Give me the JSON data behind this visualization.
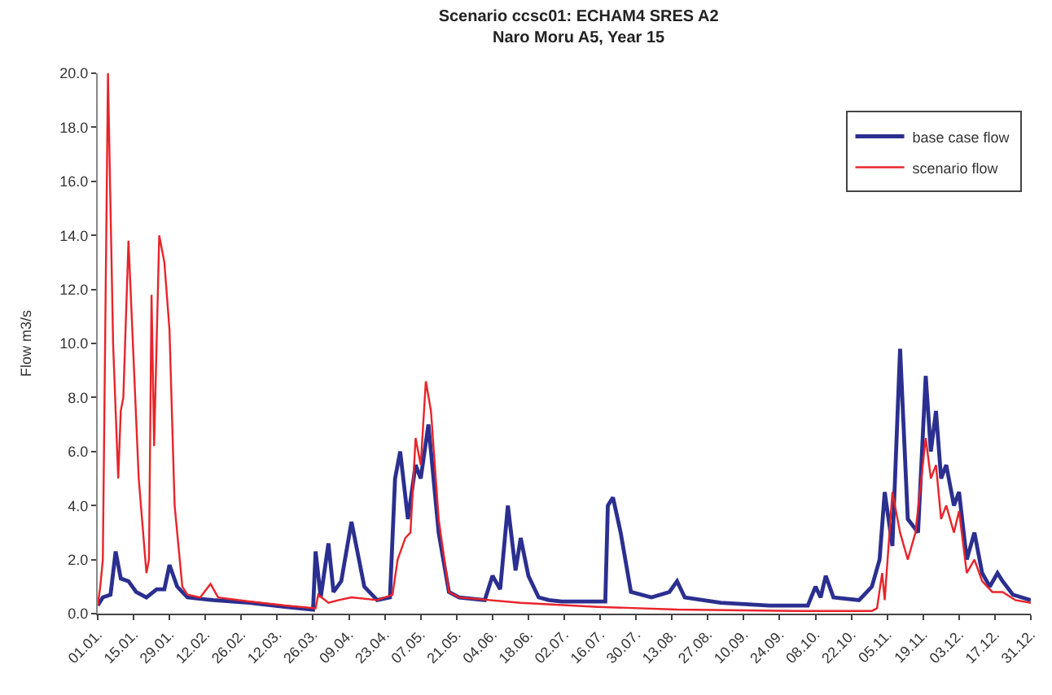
{
  "chart_data": {
    "type": "line",
    "title": "Scenario ccsc01: ECHAM4 SRES A2",
    "subtitle": "Naro Moru A5, Year 15",
    "ylabel": "Flow m3/s",
    "legend": "top right",
    "grid": false,
    "marker": "none",
    "line_style": "solid",
    "ylim": [
      0,
      20
    ],
    "yticks": [
      {
        "value": 0,
        "label": "0.0"
      },
      {
        "value": 2,
        "label": "2.0"
      },
      {
        "value": 4,
        "label": "4.0"
      },
      {
        "value": 6,
        "label": "6.0"
      },
      {
        "value": 8,
        "label": "8.0"
      },
      {
        "value": 10,
        "label": "10.0"
      },
      {
        "value": 12,
        "label": "12.0"
      },
      {
        "value": 14,
        "label": "14.0"
      },
      {
        "value": 16,
        "label": "16.0"
      },
      {
        "value": 18,
        "label": "18.0"
      },
      {
        "value": 20,
        "label": "20.0"
      }
    ],
    "xlim": [
      "--01-01",
      "--12-31"
    ],
    "xticks": [
      {
        "value": "--01-01",
        "label": "01.01."
      },
      {
        "value": "--01-15",
        "label": "15.01."
      },
      {
        "value": "--01-29",
        "label": "29.01."
      },
      {
        "value": "--02-12",
        "label": "12.02."
      },
      {
        "value": "--02-26",
        "label": "26.02."
      },
      {
        "value": "--03-12",
        "label": "12.03."
      },
      {
        "value": "--03-26",
        "label": "26.03."
      },
      {
        "value": "--04-09",
        "label": "09.04."
      },
      {
        "value": "--04-23",
        "label": "23.04."
      },
      {
        "value": "--05-07",
        "label": "07.05."
      },
      {
        "value": "--05-21",
        "label": "21.05."
      },
      {
        "value": "--06-04",
        "label": "04.06."
      },
      {
        "value": "--06-18",
        "label": "18.06."
      },
      {
        "value": "--07-02",
        "label": "02.07."
      },
      {
        "value": "--07-16",
        "label": "16.07."
      },
      {
        "value": "--07-30",
        "label": "30.07."
      },
      {
        "value": "--08-13",
        "label": "13.08."
      },
      {
        "value": "--08-27",
        "label": "27.08."
      },
      {
        "value": "--09-10",
        "label": "10.09."
      },
      {
        "value": "--09-24",
        "label": "24.09."
      },
      {
        "value": "--10-08",
        "label": "08.10."
      },
      {
        "value": "--10-22",
        "label": "22.10."
      },
      {
        "value": "--11-05",
        "label": "05.11."
      },
      {
        "value": "--11-19",
        "label": "19.11."
      },
      {
        "value": "--12-03",
        "label": "03.12."
      },
      {
        "value": "--12-17",
        "label": "17.12."
      },
      {
        "value": "--12-31",
        "label": "31.12."
      }
    ],
    "series": [
      {
        "name": "base case flow",
        "color": "#2b2f8f",
        "x": [
          "--01-01",
          "--01-03",
          "--01-06",
          "--01-08",
          "--01-10",
          "--01-13",
          "--01-16",
          "--01-20",
          "--01-24",
          "--01-27",
          "--01-29",
          "--02-01",
          "--02-05",
          "--02-15",
          "--03-01",
          "--03-15",
          "--03-26",
          "--03-27",
          "--03-29",
          "--04-01",
          "--04-03",
          "--04-06",
          "--04-10",
          "--04-15",
          "--04-20",
          "--04-25",
          "--04-27",
          "--04-29",
          "--05-02",
          "--05-05",
          "--05-07",
          "--05-10",
          "--05-14",
          "--05-18",
          "--05-22",
          "--06-01",
          "--06-04",
          "--06-07",
          "--06-10",
          "--06-13",
          "--06-15",
          "--06-18",
          "--06-22",
          "--06-26",
          "--07-01",
          "--07-18",
          "--07-19",
          "--07-21",
          "--07-24",
          "--07-28",
          "--08-05",
          "--08-12",
          "--08-15",
          "--08-18",
          "--09-01",
          "--09-20",
          "--10-05",
          "--10-08",
          "--10-10",
          "--10-12",
          "--10-15",
          "--10-25",
          "--10-30",
          "--11-02",
          "--11-04",
          "--11-07",
          "--11-10",
          "--11-13",
          "--11-17",
          "--11-20",
          "--11-22",
          "--11-24",
          "--11-26",
          "--11-28",
          "--12-01",
          "--12-03",
          "--12-06",
          "--12-09",
          "--12-12",
          "--12-15",
          "--12-18",
          "--12-20",
          "--12-24",
          "--12-31"
        ],
        "values": [
          0.3,
          0.6,
          0.7,
          2.3,
          1.3,
          1.2,
          0.8,
          0.6,
          0.9,
          0.9,
          1.8,
          1.0,
          0.6,
          0.5,
          0.4,
          0.25,
          0.15,
          2.3,
          0.6,
          2.6,
          0.8,
          1.2,
          3.4,
          1.0,
          0.5,
          0.6,
          5.0,
          6.0,
          3.5,
          5.5,
          5.0,
          7.0,
          3.0,
          0.8,
          0.6,
          0.5,
          1.4,
          0.9,
          4.0,
          1.6,
          2.8,
          1.4,
          0.6,
          0.5,
          0.45,
          0.45,
          4.0,
          4.3,
          3.0,
          0.8,
          0.6,
          0.8,
          1.2,
          0.6,
          0.4,
          0.3,
          0.3,
          1.0,
          0.6,
          1.4,
          0.6,
          0.5,
          1.0,
          2.0,
          4.5,
          2.5,
          9.8,
          3.5,
          3.0,
          8.8,
          6.0,
          7.5,
          5.0,
          5.5,
          4.0,
          4.5,
          2.0,
          3.0,
          1.5,
          1.0,
          1.5,
          1.2,
          0.7,
          0.5
        ]
      },
      {
        "name": "scenario flow",
        "color": "#e8242a",
        "x": [
          "--01-01",
          "--01-02",
          "--01-03",
          "--01-05",
          "--01-07",
          "--01-09",
          "--01-10",
          "--01-11",
          "--01-13",
          "--01-17",
          "--01-20",
          "--01-21",
          "--01-22",
          "--01-23",
          "--01-25",
          "--01-27",
          "--01-29",
          "--01-31",
          "--02-03",
          "--02-05",
          "--02-10",
          "--02-14",
          "--02-17",
          "--03-01",
          "--03-15",
          "--03-27",
          "--03-28",
          "--04-01",
          "--04-05",
          "--04-10",
          "--04-20",
          "--04-26",
          "--04-28",
          "--05-01",
          "--05-03",
          "--05-05",
          "--05-07",
          "--05-09",
          "--05-11",
          "--05-14",
          "--05-18",
          "--05-22",
          "--06-15",
          "--07-15",
          "--08-15",
          "--09-30",
          "--10-30",
          "--11-01",
          "--11-03",
          "--11-04",
          "--11-07",
          "--11-10",
          "--11-13",
          "--11-16",
          "--11-20",
          "--11-22",
          "--11-24",
          "--11-26",
          "--11-28",
          "--12-01",
          "--12-03",
          "--12-06",
          "--12-09",
          "--12-12",
          "--12-16",
          "--12-20",
          "--12-25",
          "--12-31"
        ],
        "values": [
          0.3,
          1.0,
          2.0,
          20,
          10,
          5.0,
          7.5,
          8,
          13.8,
          5,
          1.5,
          2.0,
          11.8,
          6.2,
          14.0,
          13,
          10.5,
          4.0,
          1.0,
          0.7,
          0.6,
          1.1,
          0.6,
          0.45,
          0.3,
          0.2,
          0.7,
          0.4,
          0.5,
          0.6,
          0.5,
          0.7,
          2.0,
          2.8,
          3.0,
          6.5,
          5.5,
          8.6,
          7.5,
          3.5,
          0.8,
          0.6,
          0.4,
          0.25,
          0.15,
          0.1,
          0.1,
          0.2,
          1.5,
          0.5,
          4.5,
          3.0,
          2.0,
          3.0,
          6.5,
          5.0,
          5.5,
          3.5,
          4.0,
          3.0,
          3.8,
          1.5,
          2.0,
          1.2,
          0.8,
          0.8,
          0.5,
          0.4
        ]
      }
    ]
  }
}
